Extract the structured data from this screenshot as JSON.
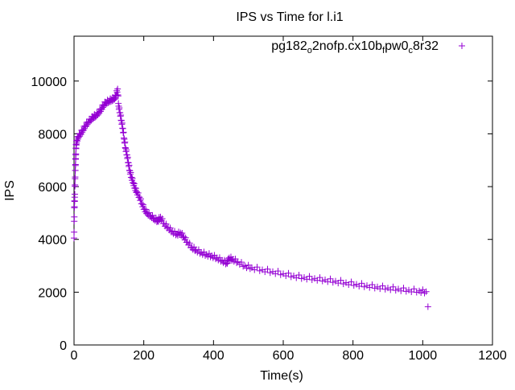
{
  "chart_data": {
    "type": "scatter",
    "title": "IPS vs Time for l.i1",
    "xlabel": "Time(s)",
    "ylabel": "IPS",
    "xlim": [
      0,
      1200
    ],
    "ylim": [
      0,
      11700
    ],
    "xticks": [
      0,
      200,
      400,
      600,
      800,
      1000,
      1200
    ],
    "yticks": [
      0,
      2000,
      4000,
      6000,
      8000,
      10000
    ],
    "grid": false,
    "legend_position": "top-right",
    "series": [
      {
        "name": "pg182_o2nofp.cx10b_fpw0_c8r32",
        "color": "#9400d3",
        "marker": "plus",
        "points": [
          [
            0,
            4050
          ],
          [
            1,
            5200
          ],
          [
            2,
            5600
          ],
          [
            3,
            6300
          ],
          [
            4,
            6800
          ],
          [
            5,
            7200
          ],
          [
            6,
            7600
          ],
          [
            8,
            7750
          ],
          [
            12,
            7900
          ],
          [
            18,
            8000
          ],
          [
            25,
            8150
          ],
          [
            32,
            8300
          ],
          [
            40,
            8450
          ],
          [
            48,
            8550
          ],
          [
            55,
            8650
          ],
          [
            62,
            8700
          ],
          [
            70,
            8800
          ],
          [
            78,
            8950
          ],
          [
            85,
            9100
          ],
          [
            92,
            9200
          ],
          [
            100,
            9250
          ],
          [
            108,
            9300
          ],
          [
            115,
            9350
          ],
          [
            120,
            9450
          ],
          [
            125,
            9700
          ],
          [
            128,
            9050
          ],
          [
            132,
            8800
          ],
          [
            136,
            8500
          ],
          [
            140,
            8200
          ],
          [
            144,
            7800
          ],
          [
            148,
            7450
          ],
          [
            152,
            7200
          ],
          [
            156,
            6900
          ],
          [
            160,
            6600
          ],
          [
            165,
            6350
          ],
          [
            170,
            6150
          ],
          [
            175,
            5950
          ],
          [
            180,
            5800
          ],
          [
            188,
            5600
          ],
          [
            195,
            5350
          ],
          [
            202,
            5150
          ],
          [
            210,
            5000
          ],
          [
            220,
            4900
          ],
          [
            230,
            4800
          ],
          [
            240,
            4700
          ],
          [
            248,
            4850
          ],
          [
            258,
            4600
          ],
          [
            270,
            4450
          ],
          [
            282,
            4300
          ],
          [
            295,
            4200
          ],
          [
            305,
            4250
          ],
          [
            315,
            4100
          ],
          [
            325,
            3900
          ],
          [
            338,
            3700
          ],
          [
            350,
            3600
          ],
          [
            365,
            3500
          ],
          [
            380,
            3430
          ],
          [
            395,
            3380
          ],
          [
            410,
            3300
          ],
          [
            425,
            3200
          ],
          [
            438,
            3100
          ],
          [
            445,
            3300
          ],
          [
            455,
            3250
          ],
          [
            470,
            3150
          ],
          [
            490,
            3000
          ],
          [
            510,
            2930
          ],
          [
            540,
            2850
          ],
          [
            570,
            2780
          ],
          [
            600,
            2700
          ],
          [
            630,
            2620
          ],
          [
            660,
            2560
          ],
          [
            690,
            2520
          ],
          [
            720,
            2470
          ],
          [
            750,
            2420
          ],
          [
            780,
            2360
          ],
          [
            810,
            2300
          ],
          [
            840,
            2250
          ],
          [
            870,
            2200
          ],
          [
            900,
            2160
          ],
          [
            930,
            2120
          ],
          [
            960,
            2080
          ],
          [
            990,
            2050
          ],
          [
            1010,
            2020
          ],
          [
            1015,
            1450
          ]
        ]
      }
    ]
  }
}
